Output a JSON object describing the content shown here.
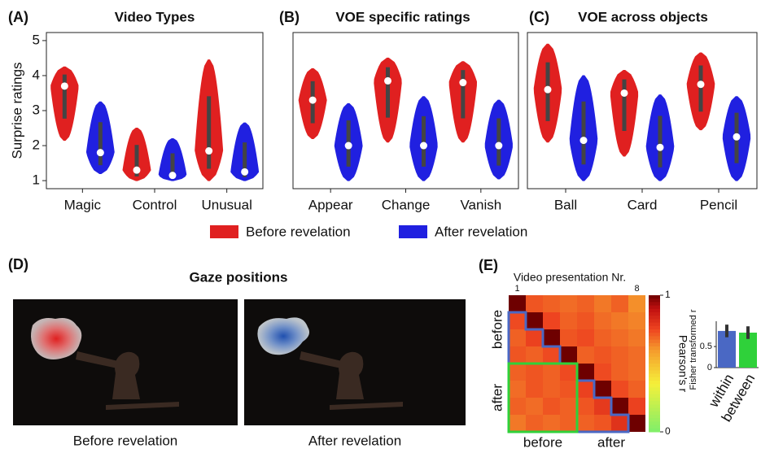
{
  "chart_data": [
    {
      "type": "violin",
      "panel_label": "(A)",
      "title": "Video Types",
      "ylabel": "Surprise ratings",
      "categories": [
        "Magic",
        "Control",
        "Unusual"
      ],
      "ylim": [
        0.77,
        5.23
      ],
      "yticks": [
        1,
        2,
        3,
        4,
        5
      ],
      "series": [
        {
          "name": "Before revelation",
          "color": "#e02020",
          "values": [
            3.7,
            1.3,
            1.85
          ],
          "min": [
            2.15,
            1.0,
            1.0
          ],
          "max": [
            4.25,
            2.5,
            4.45
          ]
        },
        {
          "name": "After revelation",
          "color": "#2020e0",
          "values": [
            1.8,
            1.15,
            1.25
          ],
          "min": [
            1.2,
            1.0,
            1.0
          ],
          "max": [
            3.25,
            2.2,
            2.65
          ]
        }
      ]
    },
    {
      "type": "violin",
      "panel_label": "(B)",
      "title": "VOE specific ratings",
      "categories": [
        "Appear",
        "Change",
        "Vanish"
      ],
      "ylim": [
        0.77,
        5.23
      ],
      "series": [
        {
          "color": "#e02020",
          "values": [
            3.3,
            3.85,
            3.8
          ],
          "min": [
            2.2,
            2.1,
            2.1
          ],
          "max": [
            4.2,
            4.5,
            4.4
          ]
        },
        {
          "color": "#2020e0",
          "values": [
            2.0,
            2.0,
            2.0
          ],
          "min": [
            1.0,
            1.0,
            1.05
          ],
          "max": [
            3.2,
            3.4,
            3.3
          ]
        }
      ]
    },
    {
      "type": "violin",
      "panel_label": "(C)",
      "title": "VOE across objects",
      "categories": [
        "Ball",
        "Card",
        "Pencil"
      ],
      "ylim": [
        0.77,
        5.23
      ],
      "series": [
        {
          "color": "#e02020",
          "values": [
            3.6,
            3.5,
            3.75
          ],
          "min": [
            2.1,
            1.7,
            2.45
          ],
          "max": [
            4.9,
            4.15,
            4.65
          ]
        },
        {
          "color": "#2020e0",
          "values": [
            2.15,
            1.95,
            2.25
          ],
          "min": [
            1.0,
            1.0,
            1.0
          ],
          "max": [
            4.0,
            3.45,
            3.4
          ]
        }
      ]
    },
    {
      "type": "heatmap",
      "panel_label": "(E)",
      "title": "Video presentation Nr.",
      "xticks": [
        1,
        8
      ],
      "row_group_labels": [
        "before",
        "after"
      ],
      "col_group_labels": [
        "before",
        "after"
      ],
      "values": [
        [
          1,
          0.72,
          0.7,
          0.68,
          0.7,
          0.66,
          0.7,
          0.62
        ],
        [
          0.74,
          1,
          0.75,
          0.7,
          0.72,
          0.68,
          0.66,
          0.64
        ],
        [
          0.7,
          0.76,
          1,
          0.72,
          0.74,
          0.7,
          0.68,
          0.66
        ],
        [
          0.72,
          0.7,
          0.74,
          1,
          0.7,
          0.72,
          0.7,
          0.68
        ],
        [
          0.7,
          0.72,
          0.7,
          0.74,
          1,
          0.74,
          0.7,
          0.68
        ],
        [
          0.68,
          0.72,
          0.7,
          0.72,
          0.76,
          1,
          0.74,
          0.7
        ],
        [
          0.7,
          0.68,
          0.72,
          0.7,
          0.72,
          0.78,
          1,
          0.76
        ],
        [
          0.66,
          0.7,
          0.68,
          0.7,
          0.7,
          0.72,
          0.8,
          1
        ]
      ],
      "clim": [
        0,
        1
      ],
      "colorbar_ticks": [
        0,
        1
      ],
      "colorbar_label": "Pearson's r"
    },
    {
      "type": "bar",
      "ylabel": "Fisher transformed r",
      "categories": [
        "within",
        "between"
      ],
      "values": [
        0.87,
        0.83
      ],
      "errors": [
        0.15,
        0.15
      ],
      "colors": [
        "#4a68c4",
        "#2fd13a"
      ],
      "ylim": [
        0,
        1.1
      ],
      "yticks": [
        0,
        0.5
      ]
    }
  ],
  "gaze_panel": {
    "panel_label": "(D)",
    "title": "Gaze positions",
    "captions": [
      "Before revelation",
      "After revelation"
    ]
  }
}
